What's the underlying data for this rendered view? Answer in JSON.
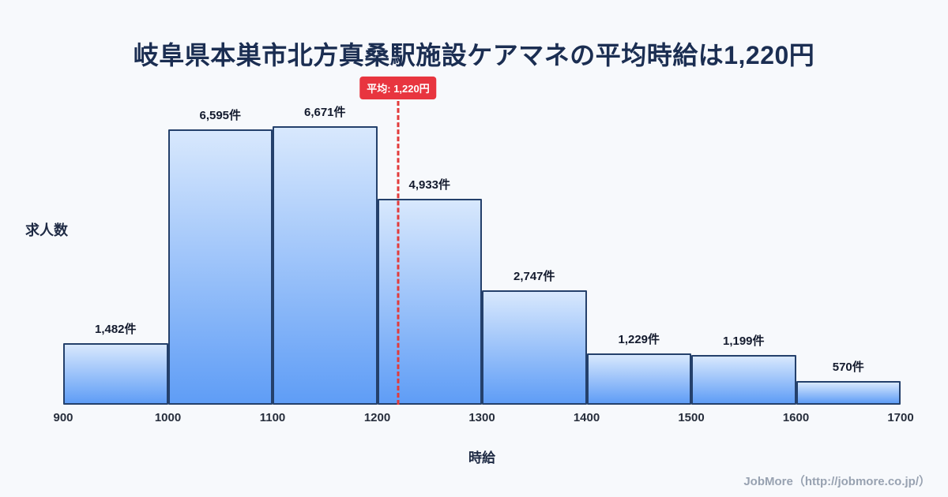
{
  "chart_data": {
    "type": "bar",
    "title": "岐阜県本巣市北方真桑駅施設ケアマネの平均時給は1,220円",
    "xlabel": "時給",
    "ylabel": "求人数",
    "x_range": [
      900,
      1700
    ],
    "ylim": [
      0,
      7000
    ],
    "x_ticks": [
      "900",
      "1000",
      "1100",
      "1200",
      "1300",
      "1400",
      "1500",
      "1600",
      "1700"
    ],
    "bins": [
      {
        "range": [
          900,
          1000
        ],
        "count": 1482,
        "label": "1,482件"
      },
      {
        "range": [
          1000,
          1100
        ],
        "count": 6595,
        "label": "6,595件"
      },
      {
        "range": [
          1100,
          1200
        ],
        "count": 6671,
        "label": "6,671件"
      },
      {
        "range": [
          1200,
          1300
        ],
        "count": 4933,
        "label": "4,933件"
      },
      {
        "range": [
          1300,
          1400
        ],
        "count": 2747,
        "label": "2,747件"
      },
      {
        "range": [
          1400,
          1500
        ],
        "count": 1229,
        "label": "1,229件"
      },
      {
        "range": [
          1500,
          1600
        ],
        "count": 1199,
        "label": "1,199件"
      },
      {
        "range": [
          1600,
          1700
        ],
        "count": 570,
        "label": "570件"
      }
    ],
    "average": {
      "value": 1220,
      "label": "平均: 1,220円"
    },
    "legend": null,
    "grid": false,
    "colors": {
      "bar_top": "#d8e8fd",
      "bar_bottom": "#5f9df6",
      "bar_border": "#24406b",
      "average_line": "#e23b3b",
      "badge_bg": "#e8353f",
      "title": "#1b2e52",
      "background": "#f7f9fc"
    }
  },
  "footer": {
    "credit": "JobMore（http://jobmore.co.jp/）"
  }
}
